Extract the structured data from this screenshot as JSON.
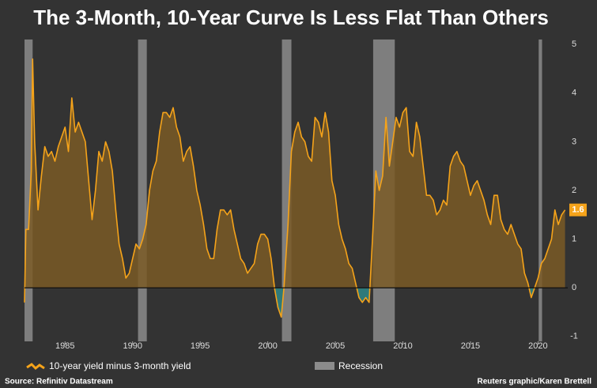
{
  "chart_data": {
    "type": "area",
    "title": "The 3-Month, 10-Year Curve Is Less Flat Than Others",
    "source": "Source: Refinitiv Datastream",
    "credit": "Reuters graphic/Karen Brettell",
    "xlim": [
      1982,
      2022.2
    ],
    "xticks": [
      1985,
      1990,
      1995,
      2000,
      2005,
      2010,
      2015,
      2020
    ],
    "ylim": [
      -1.1,
      5.1
    ],
    "yticks": [
      -1,
      0,
      1,
      2,
      3,
      4,
      5
    ],
    "positive_fill": "#7a5a26",
    "negative_fill": "#2f7a7a",
    "recessions": {
      "name": "Recession",
      "color": "#8c8c8c",
      "ranges": [
        [
          1982.0,
          1982.6
        ],
        [
          1990.4,
          1991.05
        ],
        [
          2001.05,
          2001.75
        ],
        [
          2007.8,
          2009.4
        ],
        [
          2020.05,
          2020.3
        ]
      ]
    },
    "x": [
      1982.0,
      1982.1,
      1982.3,
      1982.5,
      1982.6,
      1982.75,
      1983.0,
      1983.25,
      1983.5,
      1983.75,
      1984.0,
      1984.25,
      1984.5,
      1984.75,
      1985.0,
      1985.25,
      1985.5,
      1985.75,
      1986.0,
      1986.25,
      1986.5,
      1986.75,
      1987.0,
      1987.25,
      1987.5,
      1987.75,
      1988.0,
      1988.25,
      1988.5,
      1988.75,
      1989.0,
      1989.25,
      1989.5,
      1989.75,
      1990.0,
      1990.25,
      1990.5,
      1990.75,
      1991.0,
      1991.25,
      1991.5,
      1991.75,
      1992.0,
      1992.25,
      1992.5,
      1992.75,
      1993.0,
      1993.25,
      1993.5,
      1993.75,
      1994.0,
      1994.25,
      1994.5,
      1994.75,
      1995.0,
      1995.25,
      1995.5,
      1995.75,
      1996.0,
      1996.25,
      1996.5,
      1996.75,
      1997.0,
      1997.25,
      1997.5,
      1997.75,
      1998.0,
      1998.25,
      1998.5,
      1998.75,
      1999.0,
      1999.25,
      1999.5,
      1999.75,
      2000.0,
      2000.25,
      2000.5,
      2000.75,
      2001.0,
      2001.2,
      2001.5,
      2001.75,
      2002.0,
      2002.25,
      2002.5,
      2002.75,
      2003.0,
      2003.25,
      2003.5,
      2003.75,
      2004.0,
      2004.25,
      2004.5,
      2004.75,
      2005.0,
      2005.25,
      2005.5,
      2005.75,
      2006.0,
      2006.25,
      2006.5,
      2006.75,
      2007.0,
      2007.25,
      2007.5,
      2007.75,
      2008.0,
      2008.25,
      2008.5,
      2008.75,
      2009.0,
      2009.25,
      2009.5,
      2009.75,
      2010.0,
      2010.25,
      2010.5,
      2010.75,
      2011.0,
      2011.25,
      2011.5,
      2011.75,
      2012.0,
      2012.25,
      2012.5,
      2012.75,
      2013.0,
      2013.25,
      2013.5,
      2013.75,
      2014.0,
      2014.25,
      2014.5,
      2014.75,
      2015.0,
      2015.25,
      2015.5,
      2015.75,
      2016.0,
      2016.25,
      2016.5,
      2016.75,
      2017.0,
      2017.25,
      2017.5,
      2017.75,
      2018.0,
      2018.25,
      2018.5,
      2018.75,
      2019.0,
      2019.25,
      2019.5,
      2019.75,
      2020.0,
      2020.25,
      2020.5,
      2020.75,
      2021.0,
      2021.25,
      2021.5,
      2021.75,
      2022.0
    ],
    "series": [
      {
        "name": "10-year yield minus 3-month yield",
        "color": "#f5a31a",
        "values": [
          -0.3,
          1.2,
          1.2,
          2.4,
          4.7,
          3.0,
          1.6,
          2.3,
          2.9,
          2.7,
          2.8,
          2.6,
          2.9,
          3.1,
          3.3,
          2.8,
          3.9,
          3.2,
          3.4,
          3.2,
          3.0,
          2.2,
          1.4,
          2.0,
          2.8,
          2.6,
          3.0,
          2.8,
          2.4,
          1.6,
          0.9,
          0.6,
          0.2,
          0.3,
          0.6,
          0.9,
          0.8,
          1.0,
          1.3,
          2.0,
          2.4,
          2.6,
          3.2,
          3.6,
          3.6,
          3.5,
          3.7,
          3.3,
          3.1,
          2.6,
          2.8,
          2.9,
          2.5,
          2.0,
          1.7,
          1.3,
          0.8,
          0.6,
          0.6,
          1.2,
          1.6,
          1.6,
          1.5,
          1.6,
          1.2,
          0.9,
          0.6,
          0.5,
          0.3,
          0.4,
          0.5,
          0.9,
          1.1,
          1.1,
          1.0,
          0.6,
          0.0,
          -0.4,
          -0.6,
          0.0,
          1.3,
          2.8,
          3.2,
          3.4,
          3.1,
          3.0,
          2.7,
          2.6,
          3.5,
          3.4,
          3.1,
          3.6,
          3.2,
          2.2,
          1.9,
          1.3,
          1.0,
          0.8,
          0.5,
          0.4,
          0.1,
          -0.2,
          -0.3,
          -0.2,
          -0.3,
          1.0,
          2.4,
          2.0,
          2.3,
          3.5,
          2.5,
          3.0,
          3.5,
          3.3,
          3.6,
          3.7,
          2.8,
          2.7,
          3.4,
          3.1,
          2.5,
          1.9,
          1.9,
          1.8,
          1.5,
          1.6,
          1.8,
          1.7,
          2.5,
          2.7,
          2.8,
          2.6,
          2.5,
          2.2,
          1.9,
          2.1,
          2.2,
          2.0,
          1.8,
          1.5,
          1.3,
          1.9,
          1.9,
          1.4,
          1.2,
          1.1,
          1.3,
          1.1,
          0.9,
          0.8,
          0.3,
          0.1,
          -0.2,
          0.0,
          0.2,
          0.5,
          0.6,
          0.8,
          1.0,
          1.6,
          1.3,
          1.5,
          1.6
        ]
      }
    ]
  }
}
